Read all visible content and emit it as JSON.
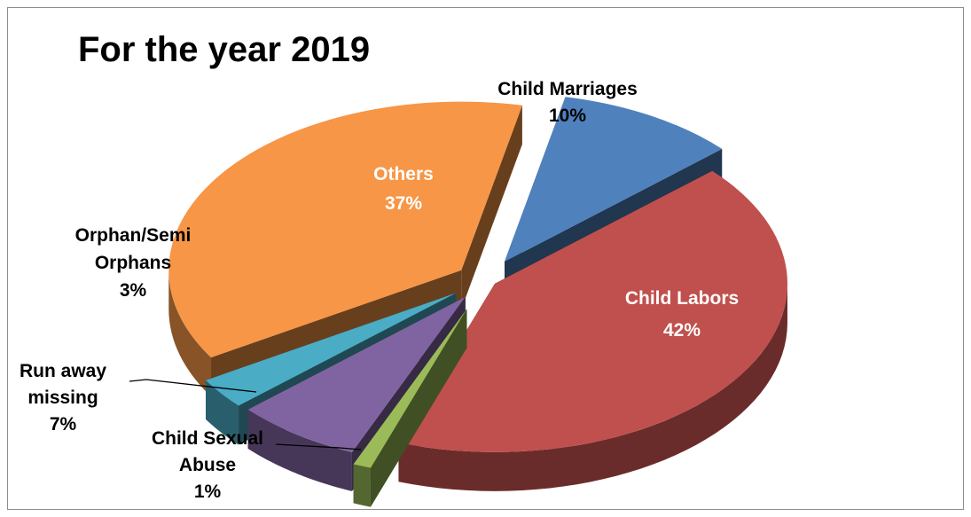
{
  "chart_data": {
    "type": "pie",
    "three_d": true,
    "exploded": true,
    "title": "For the year 2019",
    "slices": [
      {
        "name": "Child Marriages",
        "label_lines": [
          "Child Marriages",
          "10%"
        ],
        "percent": 10,
        "color": "#4f81bd"
      },
      {
        "name": "Child Labors",
        "label_lines": [
          "Child Labors",
          "42%"
        ],
        "percent": 42,
        "color": "#c0504d"
      },
      {
        "name": "Child Sexual Abuse",
        "label_lines": [
          "Child Sexual",
          "Abuse",
          "1%"
        ],
        "percent": 1,
        "color": "#9bbb59"
      },
      {
        "name": "Run away missing",
        "label_lines": [
          "Run away",
          "missing",
          "7%"
        ],
        "percent": 7,
        "color": "#8064a2"
      },
      {
        "name": "Orphan/Semi Orphans",
        "label_lines": [
          "Orphan/Semi",
          "Orphans",
          "3%"
        ],
        "percent": 3,
        "color": "#4bacc6"
      },
      {
        "name": "Others",
        "label_lines": [
          "Others",
          "37%"
        ],
        "percent": 37,
        "color": "#f79646"
      }
    ]
  }
}
